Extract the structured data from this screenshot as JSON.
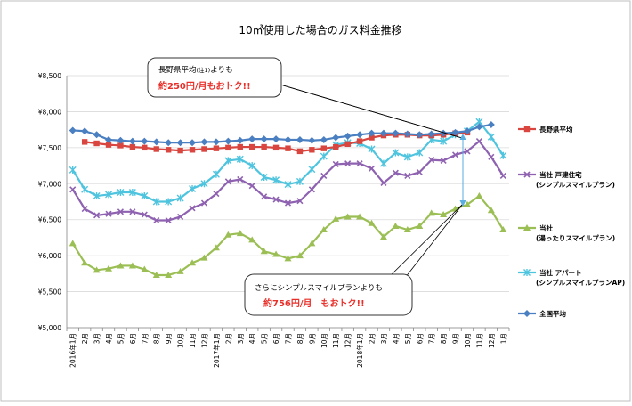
{
  "chart_data": {
    "type": "line",
    "title": "10㎥使用した場合のガス料金推移",
    "ylim": [
      5000,
      8500
    ],
    "yticks": [
      5000,
      5500,
      6000,
      6500,
      7000,
      7500,
      8000,
      8500
    ],
    "ytick_labels": [
      "¥5,000",
      "¥5,500",
      "¥6,000",
      "¥6,500",
      "¥7,000",
      "¥7,500",
      "¥8,000",
      "¥8,500"
    ],
    "grid": true,
    "legend_position": "right",
    "categories": [
      "2016年1月",
      "2月",
      "3月",
      "4月",
      "5月",
      "6月",
      "7月",
      "8月",
      "9月",
      "10月",
      "11月",
      "12月",
      "2017年1月",
      "2月",
      "3月",
      "4月",
      "5月",
      "6月",
      "7月",
      "8月",
      "9月",
      "10月",
      "11月",
      "12月",
      "2018年1月",
      "2月",
      "3月",
      "4月",
      "5月",
      "6月",
      "7月",
      "8月",
      "9月",
      "10月",
      "11月",
      "12月",
      "1月"
    ],
    "series": [
      {
        "name": "長野県平均",
        "color": "#d9463f",
        "marker": "square",
        "values": [
          null,
          7580,
          7560,
          7540,
          7530,
          7510,
          7500,
          7480,
          7470,
          7460,
          7470,
          7480,
          7490,
          7500,
          7510,
          7510,
          7510,
          7500,
          7490,
          7450,
          7470,
          7490,
          7510,
          7550,
          7590,
          7640,
          7670,
          7680,
          7680,
          7670,
          7670,
          7680,
          7700,
          7710,
          null,
          null,
          null
        ]
      },
      {
        "name": "当社 戸建住宅",
        "name2": "(シンプルスマイルプラン)",
        "color": "#8e62b0",
        "marker": "x",
        "values": [
          6920,
          6650,
          6560,
          6580,
          6610,
          6610,
          6570,
          6490,
          6490,
          6540,
          6660,
          6730,
          6860,
          7030,
          7060,
          6970,
          6820,
          6780,
          6730,
          6760,
          6920,
          7110,
          7270,
          7280,
          7280,
          7210,
          7010,
          7150,
          7110,
          7160,
          7330,
          7320,
          7400,
          7450,
          7590,
          7370,
          7110
        ]
      },
      {
        "name": "当社",
        "name2": "(湯ったりスマイルプラン)",
        "color": "#9bbf54",
        "marker": "triangle",
        "values": [
          6170,
          5900,
          5800,
          5820,
          5860,
          5860,
          5810,
          5730,
          5730,
          5780,
          5900,
          5970,
          6110,
          6290,
          6310,
          6220,
          6060,
          6020,
          5960,
          6000,
          6170,
          6360,
          6510,
          6540,
          6540,
          6450,
          6260,
          6410,
          6360,
          6410,
          6590,
          6570,
          6650,
          6710,
          6830,
          6630,
          6360
        ]
      },
      {
        "name": "当社 アパート",
        "name2": "(シンプルスマイルプランAP)",
        "color": "#4fc4de",
        "marker": "star",
        "values": [
          7190,
          6920,
          6830,
          6850,
          6880,
          6880,
          6830,
          6750,
          6750,
          6800,
          6930,
          7000,
          7130,
          7320,
          7340,
          7250,
          7090,
          7050,
          6990,
          7030,
          7200,
          7380,
          7540,
          7570,
          7560,
          7480,
          7280,
          7430,
          7370,
          7430,
          7610,
          7590,
          7680,
          7730,
          7860,
          7650,
          7390
        ]
      },
      {
        "name": "全国平均",
        "color": "#4a7fc1",
        "marker": "diamond",
        "values": [
          7740,
          7730,
          7680,
          7610,
          7600,
          7590,
          7590,
          7580,
          7570,
          7570,
          7570,
          7580,
          7580,
          7590,
          7600,
          7620,
          7620,
          7620,
          7610,
          7610,
          7600,
          7610,
          7640,
          7660,
          7680,
          7700,
          7700,
          7700,
          7690,
          7680,
          7690,
          7700,
          7710,
          7730,
          7790,
          7820,
          null
        ]
      }
    ],
    "callouts": [
      {
        "line1": "長野県平均",
        "sup": "(注1)",
        "line1b": "よりも",
        "line2": "約250円/月もおトク!!"
      },
      {
        "line1": "さらにシンプルスマイルプランよりも",
        "line2": "約756円/月　もおトク!!"
      }
    ]
  }
}
